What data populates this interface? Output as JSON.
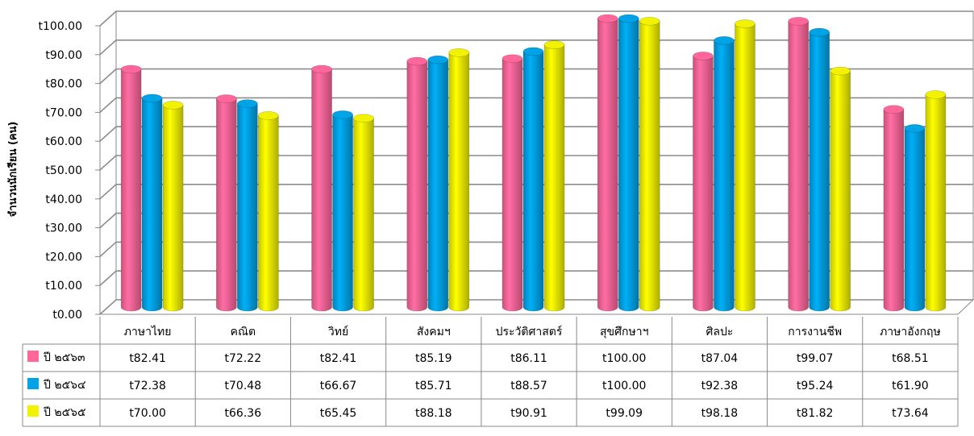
{
  "chart_data": {
    "type": "bar",
    "ylabel": "จำนวนนักเรียน (คน)",
    "ylim": [
      0,
      100
    ],
    "yticks": [
      "t0.00",
      "t10.00",
      "t20.00",
      "t30.00",
      "t40.00",
      "t50.00",
      "t60.00",
      "t70.00",
      "t80.00",
      "t90.00",
      "t100.00"
    ],
    "categories": [
      "ภาษาไทย",
      "คณิต",
      "วิทย์",
      "สังคมฯ",
      "ประวัติศาสตร์",
      "สุขศึกษาฯ",
      "ศิลปะ",
      "การงานชีพ",
      "ภาษาอังกฤษ"
    ],
    "grid": true,
    "legend": "bottom-left in data table",
    "series": [
      {
        "name": "ปี ๒๕๖๓",
        "color": "#FF6699",
        "values": [
          82.41,
          72.22,
          82.41,
          85.19,
          86.11,
          100.0,
          87.04,
          99.07,
          68.51
        ],
        "labels": [
          "t82.41",
          "t72.22",
          "t82.41",
          "t85.19",
          "t86.11",
          "t100.00",
          "t87.04",
          "t99.07",
          "t68.51"
        ]
      },
      {
        "name": "ปี ๒๕๖๔",
        "color": "#00A3E6",
        "values": [
          72.38,
          70.48,
          66.67,
          85.71,
          88.57,
          100.0,
          92.38,
          95.24,
          61.9
        ],
        "labels": [
          "t72.38",
          "t70.48",
          "t66.67",
          "t85.71",
          "t88.57",
          "t100.00",
          "t92.38",
          "t95.24",
          "t61.90"
        ]
      },
      {
        "name": "ปี ๒๕๖๕",
        "color": "#F2F200",
        "values": [
          70.0,
          66.36,
          65.45,
          88.18,
          90.91,
          99.09,
          98.18,
          81.82,
          73.64
        ],
        "labels": [
          "t70.00",
          "t66.36",
          "t65.45",
          "t88.18",
          "t90.91",
          "t99.09",
          "t98.18",
          "t81.82",
          "t73.64"
        ]
      }
    ]
  }
}
